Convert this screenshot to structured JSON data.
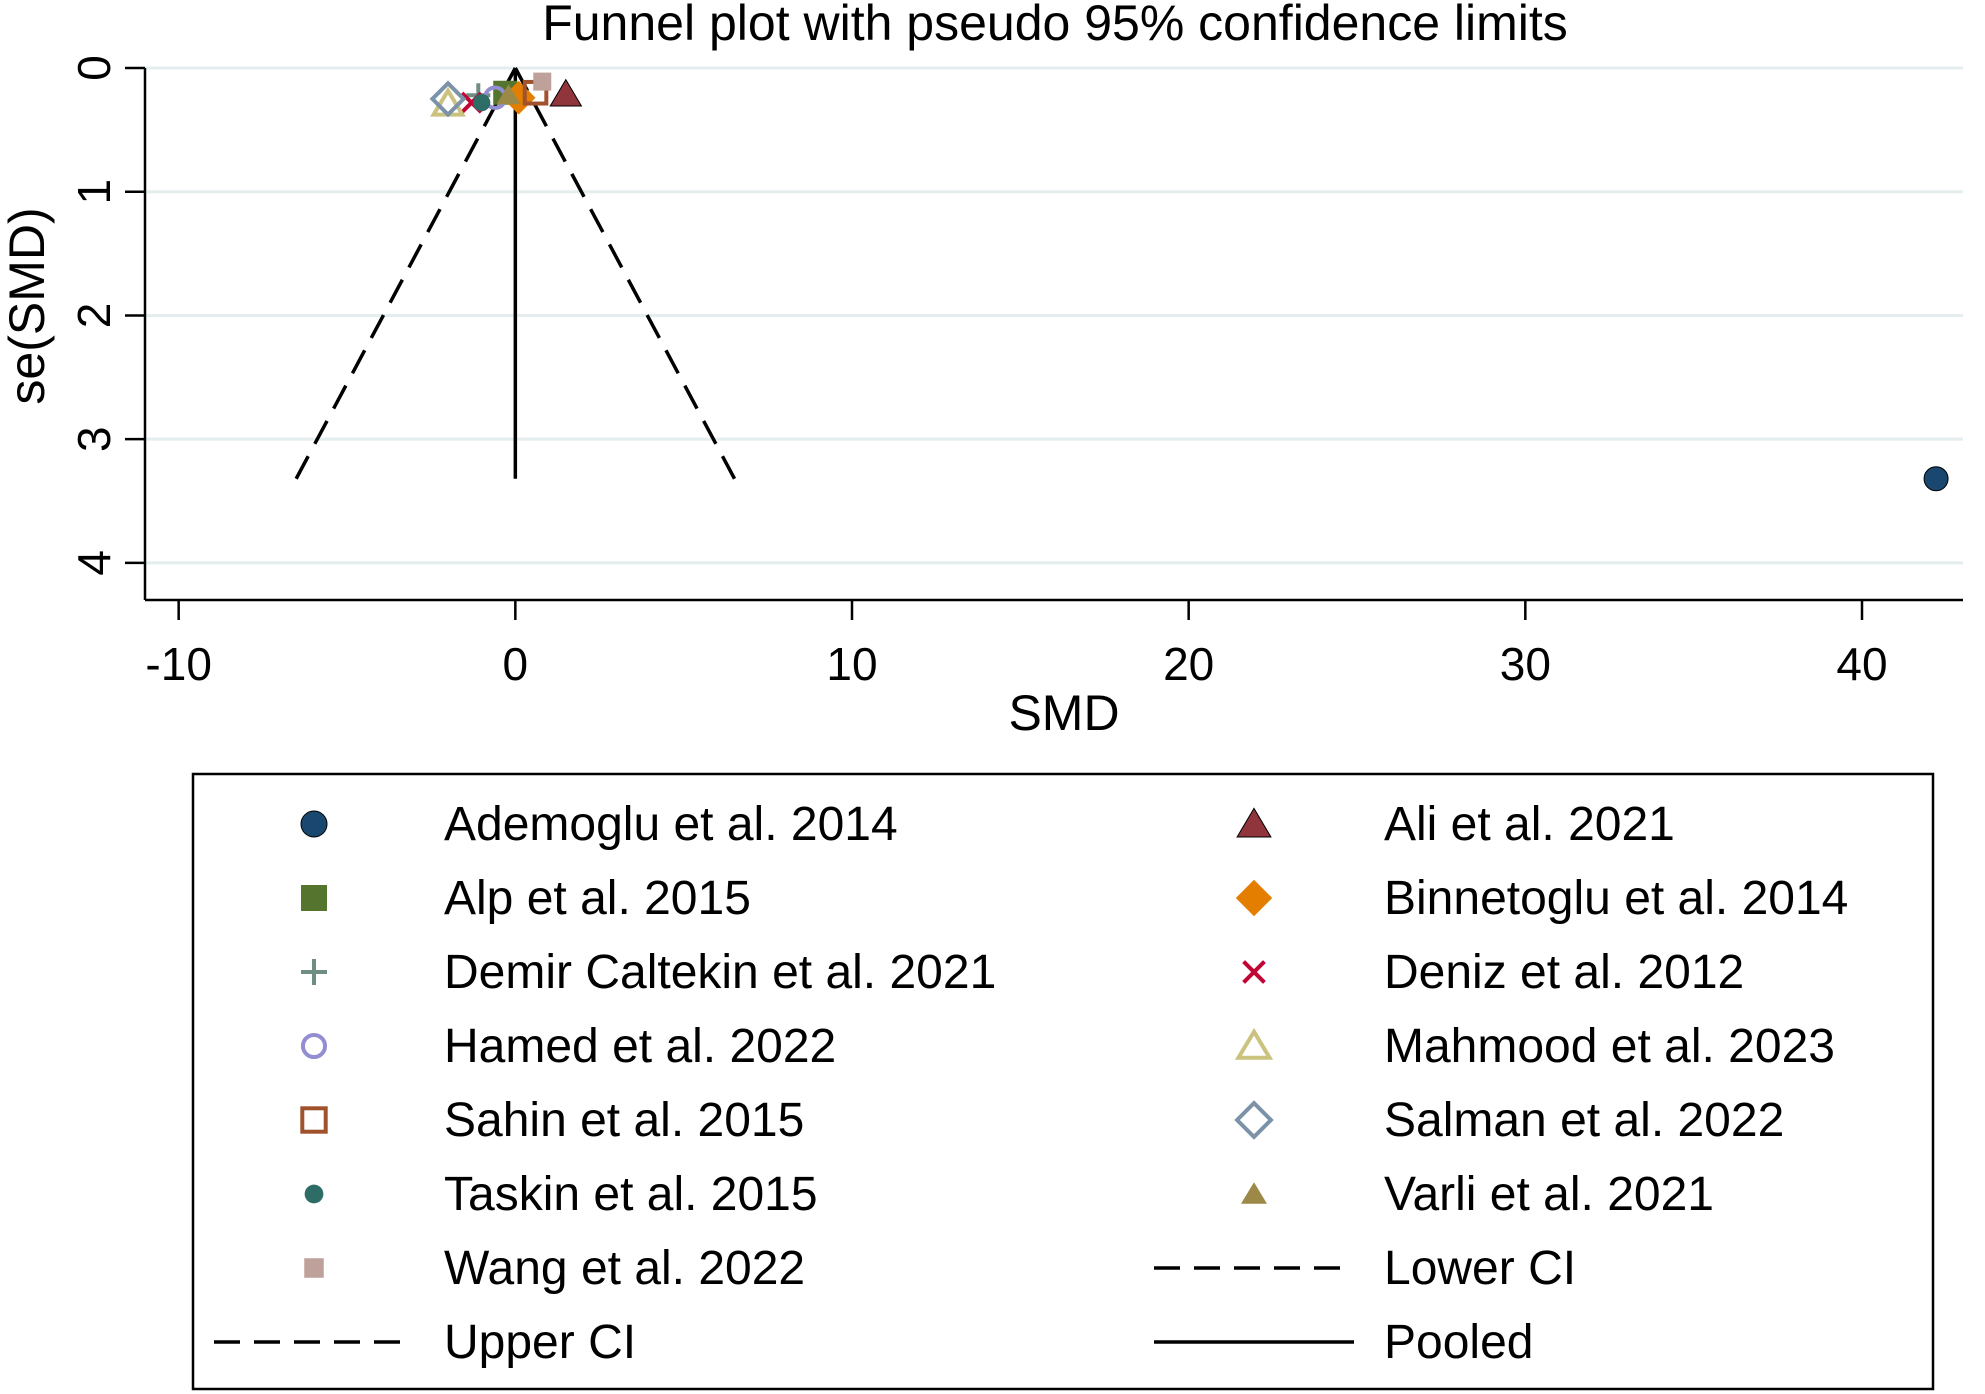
{
  "chart_data": {
    "type": "scatter",
    "title": "Funnel plot with pseudo 95% confidence limits",
    "xlabel": "SMD",
    "ylabel": "se(SMD)",
    "xlim": [
      -11,
      43
    ],
    "ylim": [
      0,
      4.3
    ],
    "y_reversed": true,
    "xticks": [
      -10,
      0,
      10,
      20,
      30,
      40
    ],
    "yticks": [
      0,
      1,
      2,
      3,
      4
    ],
    "xtick_labels": [
      "-10",
      "0",
      "10",
      "20",
      "30",
      "40"
    ],
    "ytick_labels": [
      "0",
      "1",
      "2",
      "3",
      "4"
    ],
    "grid": true,
    "pooled": 0,
    "se_max": 3.32,
    "series": [
      {
        "name": "Ademoglu et al. 2014",
        "marker": "circle",
        "color": "#1a476f",
        "x": [
          42.2
        ],
        "y": [
          3.32
        ]
      },
      {
        "name": "Ali et al. 2021",
        "marker": "triangle",
        "color": "#90353b",
        "x": [
          1.5
        ],
        "y": [
          0.21
        ]
      },
      {
        "name": "Alp et al. 2015",
        "marker": "square",
        "color": "#55752f",
        "x": [
          -0.3
        ],
        "y": [
          0.2
        ]
      },
      {
        "name": "Binnetoglu et al. 2014",
        "marker": "diamond",
        "color": "#e37e00",
        "x": [
          0.1
        ],
        "y": [
          0.24
        ]
      },
      {
        "name": "Demir Caltekin et al. 2021",
        "marker": "plus",
        "color": "#6e8e84",
        "x": [
          -1.1
        ],
        "y": [
          0.22
        ]
      },
      {
        "name": "Deniz et al. 2012",
        "marker": "x",
        "color": "#c10534",
        "x": [
          -1.3
        ],
        "y": [
          0.28
        ]
      },
      {
        "name": "Hamed et al. 2022",
        "marker": "circle-hollow",
        "color": "#938dd2",
        "x": [
          -0.6
        ],
        "y": [
          0.24
        ]
      },
      {
        "name": "Mahmood et al. 2023",
        "marker": "triangle-hollow",
        "color": "#cac27e",
        "x": [
          -2.0
        ],
        "y": [
          0.29
        ]
      },
      {
        "name": "Sahin et al. 2015",
        "marker": "square-hollow",
        "color": "#a0522d",
        "x": [
          0.6
        ],
        "y": [
          0.2
        ]
      },
      {
        "name": "Salman et al. 2022",
        "marker": "diamond-hollow",
        "color": "#7b92a8",
        "x": [
          -2.0
        ],
        "y": [
          0.25
        ]
      },
      {
        "name": "Taskin et al. 2015",
        "marker": "circle-small",
        "color": "#2d6d66",
        "x": [
          -1.0
        ],
        "y": [
          0.28
        ]
      },
      {
        "name": "Varli et al. 2021",
        "marker": "triangle-small",
        "color": "#9c8847",
        "x": [
          -0.2
        ],
        "y": [
          0.22
        ]
      },
      {
        "name": "Wang et al. 2022",
        "marker": "square-small",
        "color": "#bfa19c",
        "x": [
          0.8
        ],
        "y": [
          0.11
        ]
      }
    ],
    "lines": [
      {
        "name": "Lower CI",
        "style": "dashed",
        "points": [
          [
            0,
            0
          ],
          [
            -6.51,
            3.32
          ]
        ]
      },
      {
        "name": "Upper CI",
        "style": "dashed",
        "points": [
          [
            0,
            0
          ],
          [
            6.51,
            3.32
          ]
        ]
      },
      {
        "name": "Pooled",
        "style": "solid",
        "points": [
          [
            0,
            0
          ],
          [
            0,
            3.32
          ]
        ]
      }
    ],
    "legend": {
      "placement": "bottom",
      "columns": 2,
      "entries": [
        {
          "label": "Ademoglu et al. 2014",
          "marker": "circle",
          "color": "#1a476f"
        },
        {
          "label": "Ali et al. 2021",
          "marker": "triangle",
          "color": "#90353b"
        },
        {
          "label": "Alp et al. 2015",
          "marker": "square",
          "color": "#55752f"
        },
        {
          "label": "Binnetoglu et al. 2014",
          "marker": "diamond",
          "color": "#e37e00"
        },
        {
          "label": "Demir Caltekin et al. 2021",
          "marker": "plus",
          "color": "#6e8e84"
        },
        {
          "label": "Deniz et al. 2012",
          "marker": "x",
          "color": "#c10534"
        },
        {
          "label": "Hamed et al. 2022",
          "marker": "circle-hollow",
          "color": "#938dd2"
        },
        {
          "label": "Mahmood et al. 2023",
          "marker": "triangle-hollow",
          "color": "#cac27e"
        },
        {
          "label": "Sahin et al. 2015",
          "marker": "square-hollow",
          "color": "#a0522d"
        },
        {
          "label": "Salman et al. 2022",
          "marker": "diamond-hollow",
          "color": "#7b92a8"
        },
        {
          "label": "Taskin et al. 2015",
          "marker": "circle-small",
          "color": "#2d6d66"
        },
        {
          "label": "Varli et al. 2021",
          "marker": "triangle-small",
          "color": "#9c8847"
        },
        {
          "label": "Wang et al. 2022",
          "marker": "square-small",
          "color": "#bfa19c"
        },
        {
          "label": "Lower CI",
          "marker": "line-dashed",
          "color": "#000000"
        },
        {
          "label": "Upper CI",
          "marker": "line-dashed",
          "color": "#000000"
        },
        {
          "label": "Pooled",
          "marker": "line-solid",
          "color": "#000000"
        }
      ]
    }
  },
  "colors": {
    "background": "#ffffff",
    "grid": "#e4eeee",
    "axis": "#000000"
  }
}
